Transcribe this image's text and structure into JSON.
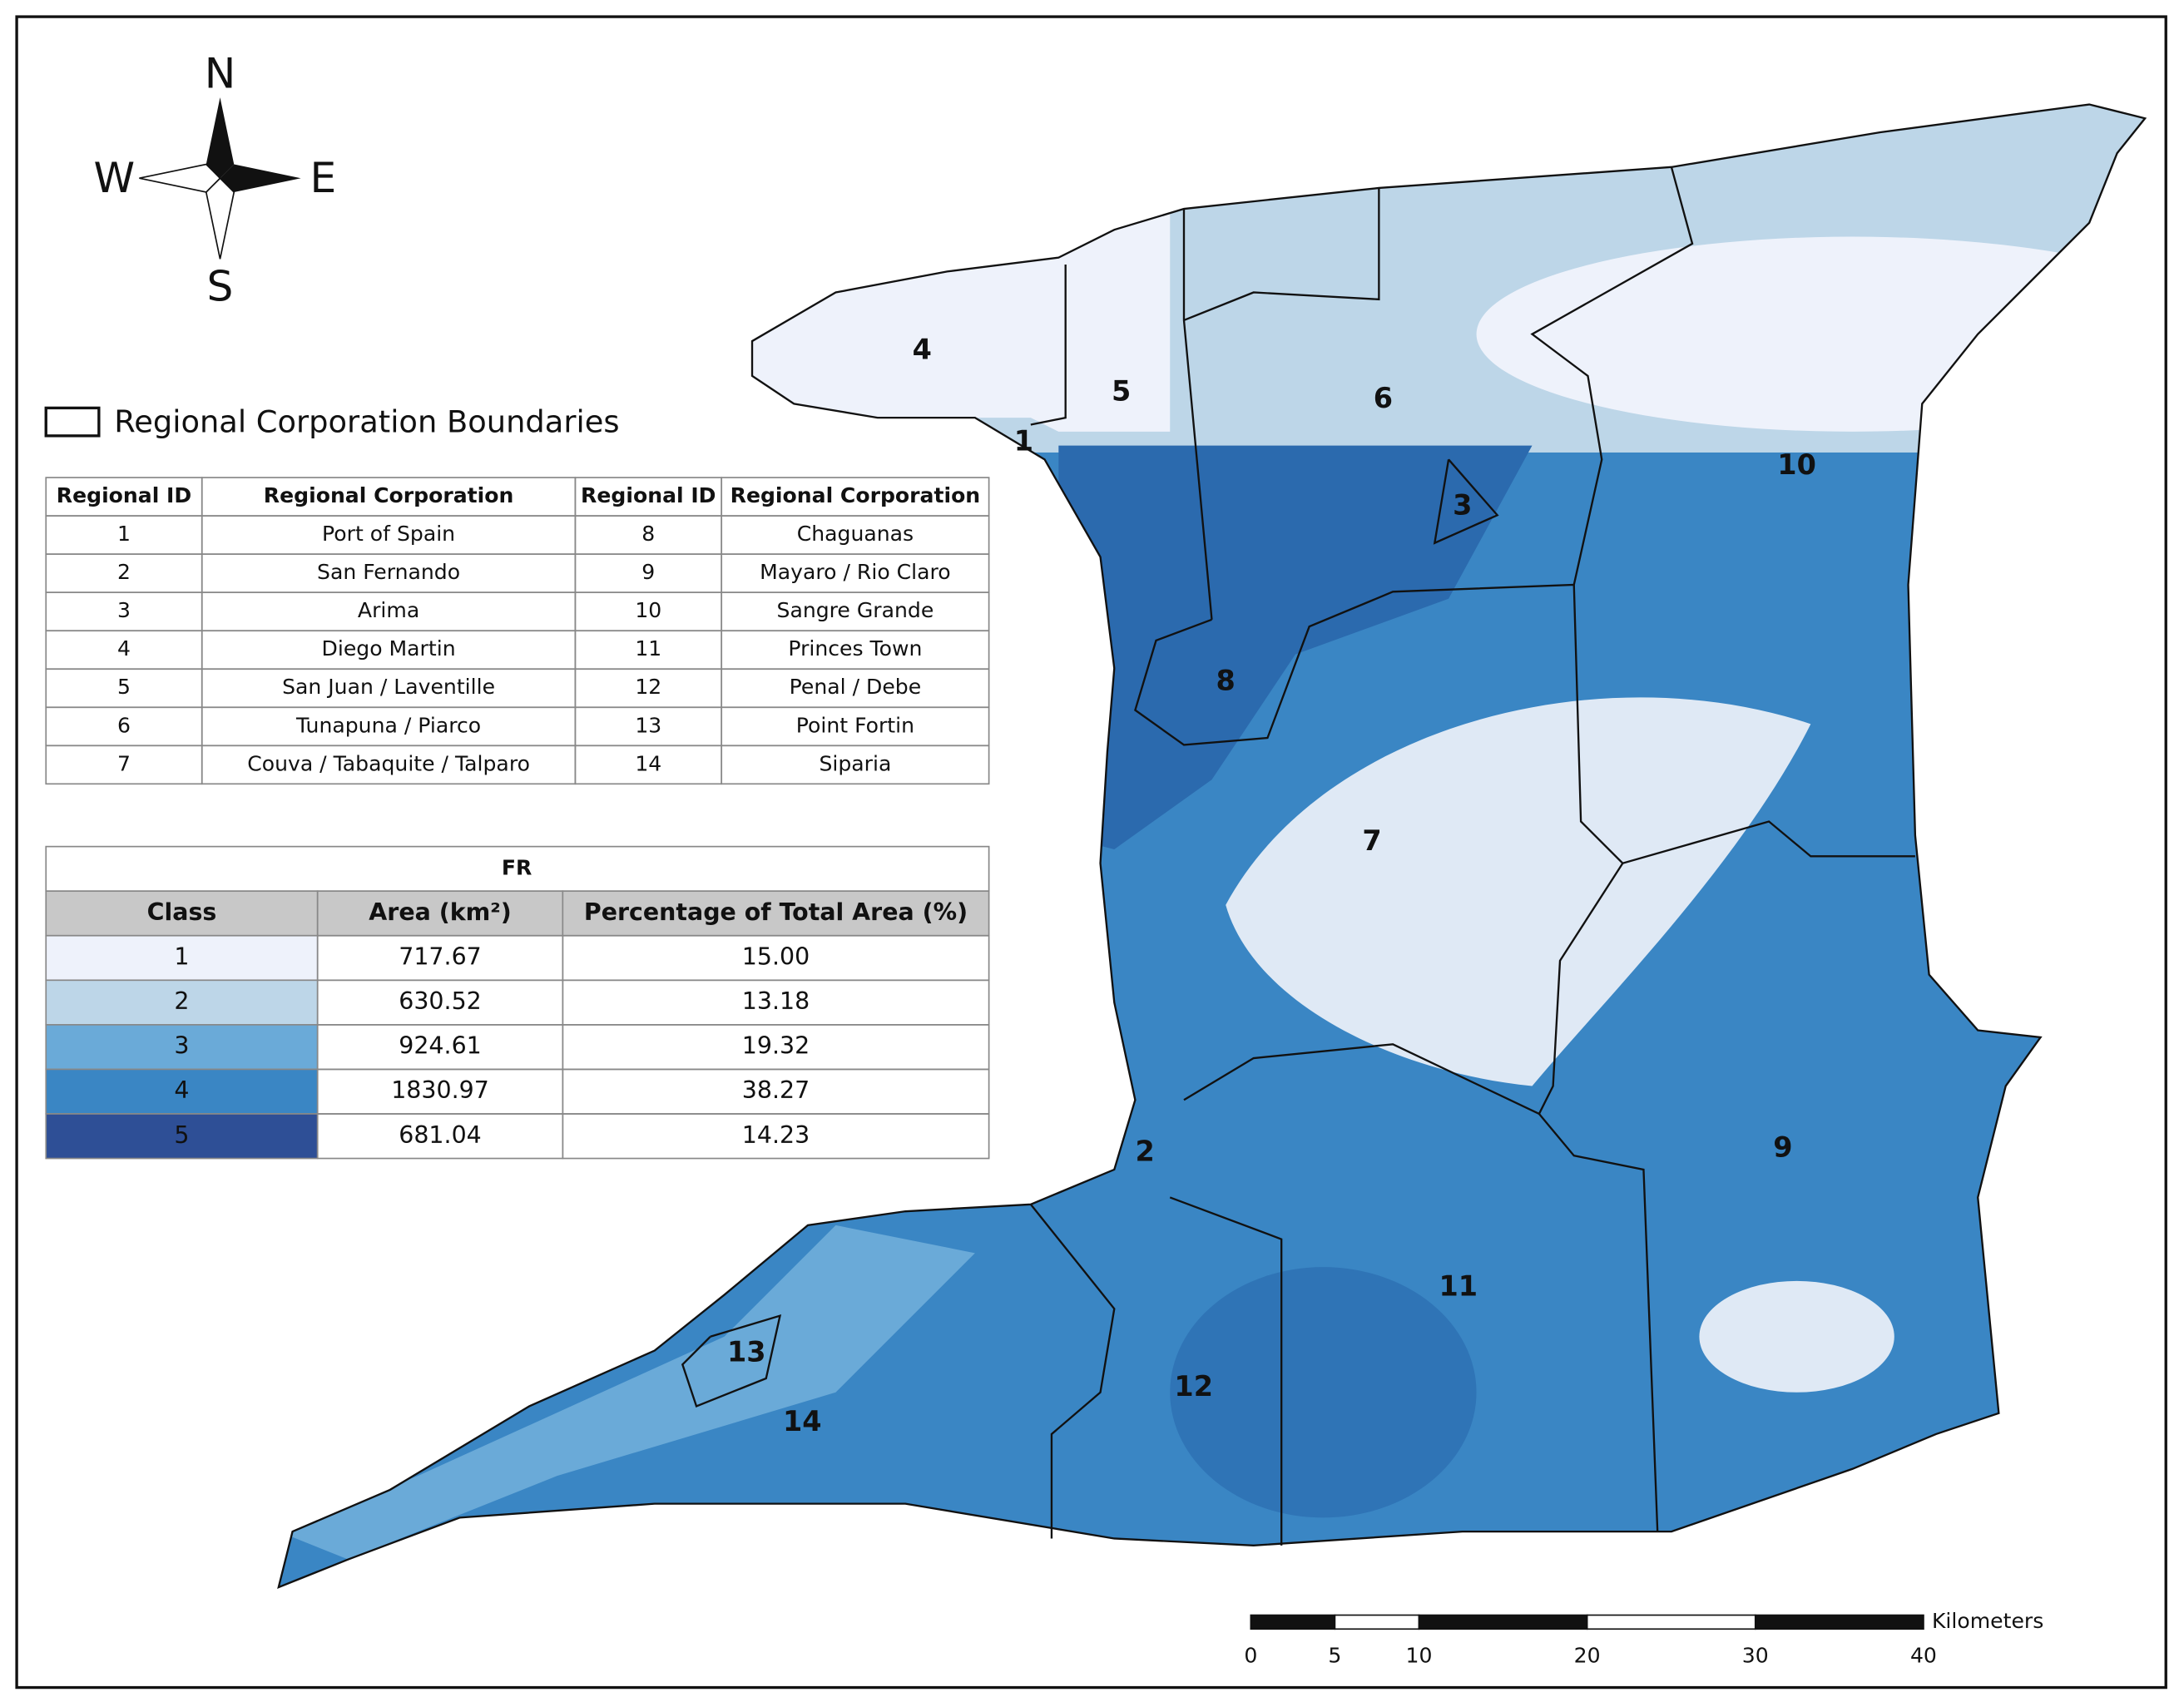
{
  "compass": {
    "north": "N",
    "east": "E",
    "south": "S",
    "west": "W"
  },
  "legend": {
    "label": "Regional Corporation Boundaries"
  },
  "regions_table": {
    "headers": [
      "Regional ID",
      "Regional Corporation",
      "Regional ID",
      "Regional Corporation"
    ],
    "rows": [
      [
        "1",
        "Port of Spain",
        "8",
        "Chaguanas"
      ],
      [
        "2",
        "San Fernando",
        "9",
        "Mayaro / Rio Claro"
      ],
      [
        "3",
        "Arima",
        "10",
        "Sangre Grande"
      ],
      [
        "4",
        "Diego Martin",
        "11",
        "Princes Town"
      ],
      [
        "5",
        "San Juan / Laventille",
        "12",
        "Penal / Debe"
      ],
      [
        "6",
        "Tunapuna / Piarco",
        "13",
        "Point Fortin"
      ],
      [
        "7",
        "Couva / Tabaquite / Talparo",
        "14",
        "Siparia"
      ]
    ]
  },
  "fr_table": {
    "title": "FR",
    "headers": [
      "Class",
      "Area (km²)",
      "Percentage of Total Area (%)"
    ],
    "rows": [
      {
        "class": "1",
        "area": "717.67",
        "percentage": "15.00",
        "color": "#eef2fb"
      },
      {
        "class": "2",
        "area": "630.52",
        "percentage": "13.18",
        "color": "#bdd6e8"
      },
      {
        "class": "3",
        "area": "924.61",
        "percentage": "19.32",
        "color": "#6aaad8"
      },
      {
        "class": "4",
        "area": "1830.97",
        "percentage": "38.27",
        "color": "#3a86c4"
      },
      {
        "class": "5",
        "area": "681.04",
        "percentage": "14.23",
        "color": "#2e4f96"
      }
    ]
  },
  "map_labels": [
    "1",
    "2",
    "3",
    "4",
    "5",
    "6",
    "7",
    "8",
    "9",
    "10",
    "11",
    "12",
    "13",
    "14"
  ],
  "scale_bar": {
    "unit": "Kilometers",
    "ticks": [
      0,
      5,
      10,
      20,
      30,
      40
    ]
  }
}
